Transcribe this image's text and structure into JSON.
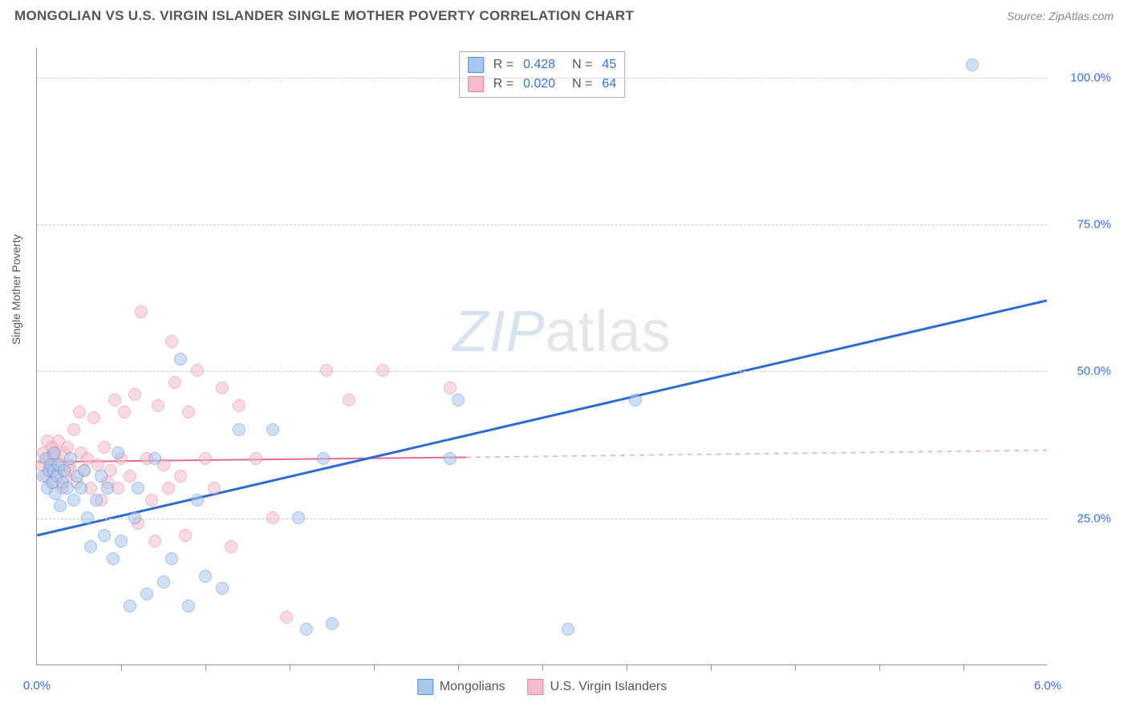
{
  "title": "MONGOLIAN VS U.S. VIRGIN ISLANDER SINGLE MOTHER POVERTY CORRELATION CHART",
  "source": "Source: ZipAtlas.com",
  "ylabel": "Single Mother Poverty",
  "watermark_bold": "ZIP",
  "watermark_thin": "atlas",
  "chart": {
    "type": "scatter",
    "xlim": [
      0.0,
      6.0
    ],
    "ylim": [
      0.0,
      105.0
    ],
    "xtick_labels": [
      "0.0%",
      "6.0%"
    ],
    "xtick_positions": [
      0.0,
      6.0
    ],
    "xtick_minor": [
      0.5,
      1.0,
      1.5,
      2.0,
      2.5,
      3.0,
      3.5,
      4.0,
      4.5,
      5.0,
      5.5
    ],
    "ytick_labels": [
      "25.0%",
      "50.0%",
      "75.0%",
      "100.0%"
    ],
    "ytick_positions": [
      25.0,
      50.0,
      75.0,
      100.0
    ],
    "grid_color": "#d4d4d4",
    "background_color": "#ffffff",
    "marker_radius": 8,
    "marker_opacity": 0.55,
    "series": [
      {
        "name": "Mongolians",
        "color_fill": "#a8c7ec",
        "color_stroke": "#5b8fd6",
        "R": "0.428",
        "N": "45",
        "trend": {
          "x1": 0.0,
          "y1": 22.0,
          "x2": 6.0,
          "y2": 62.0,
          "color": "#2e6bd0",
          "width": 3,
          "dash": "none"
        },
        "points": [
          [
            0.04,
            32
          ],
          [
            0.05,
            35
          ],
          [
            0.06,
            30
          ],
          [
            0.07,
            33
          ],
          [
            0.08,
            34
          ],
          [
            0.09,
            31
          ],
          [
            0.1,
            36
          ],
          [
            0.1,
            33
          ],
          [
            0.11,
            29
          ],
          [
            0.12,
            32
          ],
          [
            0.13,
            34
          ],
          [
            0.14,
            27
          ],
          [
            0.15,
            31
          ],
          [
            0.16,
            33
          ],
          [
            0.18,
            30
          ],
          [
            0.2,
            35
          ],
          [
            0.22,
            28
          ],
          [
            0.24,
            32
          ],
          [
            0.26,
            30
          ],
          [
            0.28,
            33
          ],
          [
            0.3,
            25
          ],
          [
            0.32,
            20
          ],
          [
            0.35,
            28
          ],
          [
            0.38,
            32
          ],
          [
            0.4,
            22
          ],
          [
            0.42,
            30
          ],
          [
            0.45,
            18
          ],
          [
            0.48,
            36
          ],
          [
            0.5,
            21
          ],
          [
            0.55,
            10
          ],
          [
            0.58,
            25
          ],
          [
            0.6,
            30
          ],
          [
            0.65,
            12
          ],
          [
            0.7,
            35
          ],
          [
            0.75,
            14
          ],
          [
            0.8,
            18
          ],
          [
            0.85,
            52
          ],
          [
            0.9,
            10
          ],
          [
            0.95,
            28
          ],
          [
            1.0,
            15
          ],
          [
            1.1,
            13
          ],
          [
            1.2,
            40
          ],
          [
            1.4,
            40
          ],
          [
            1.55,
            25
          ],
          [
            1.6,
            6
          ],
          [
            1.7,
            35
          ],
          [
            1.75,
            7
          ],
          [
            2.45,
            35
          ],
          [
            2.5,
            45
          ],
          [
            3.15,
            6
          ],
          [
            3.55,
            45
          ],
          [
            5.55,
            102
          ]
        ]
      },
      {
        "name": "U.S. Virgin Islanders",
        "color_fill": "#f4bccb",
        "color_stroke": "#e383a0",
        "R": "0.020",
        "N": "64",
        "trend_solid": {
          "x1": 0.0,
          "y1": 34.5,
          "x2": 2.55,
          "y2": 35.3,
          "color": "#e86a8f",
          "width": 2
        },
        "trend_dash": {
          "x1": 2.55,
          "y1": 35.3,
          "x2": 6.0,
          "y2": 36.5,
          "color": "#e8a9b9",
          "width": 1.5
        },
        "points": [
          [
            0.03,
            34
          ],
          [
            0.04,
            36
          ],
          [
            0.05,
            32
          ],
          [
            0.06,
            38
          ],
          [
            0.07,
            35
          ],
          [
            0.08,
            33
          ],
          [
            0.09,
            37
          ],
          [
            0.1,
            35
          ],
          [
            0.1,
            31
          ],
          [
            0.11,
            36
          ],
          [
            0.12,
            33
          ],
          [
            0.13,
            38
          ],
          [
            0.14,
            34
          ],
          [
            0.15,
            30
          ],
          [
            0.16,
            36
          ],
          [
            0.17,
            32
          ],
          [
            0.18,
            37
          ],
          [
            0.19,
            34
          ],
          [
            0.2,
            33
          ],
          [
            0.22,
            40
          ],
          [
            0.24,
            31
          ],
          [
            0.25,
            43
          ],
          [
            0.26,
            36
          ],
          [
            0.28,
            33
          ],
          [
            0.3,
            35
          ],
          [
            0.32,
            30
          ],
          [
            0.34,
            42
          ],
          [
            0.36,
            34
          ],
          [
            0.38,
            28
          ],
          [
            0.4,
            37
          ],
          [
            0.42,
            31
          ],
          [
            0.44,
            33
          ],
          [
            0.46,
            45
          ],
          [
            0.48,
            30
          ],
          [
            0.5,
            35
          ],
          [
            0.52,
            43
          ],
          [
            0.55,
            32
          ],
          [
            0.58,
            46
          ],
          [
            0.6,
            24
          ],
          [
            0.62,
            60
          ],
          [
            0.65,
            35
          ],
          [
            0.68,
            28
          ],
          [
            0.7,
            21
          ],
          [
            0.72,
            44
          ],
          [
            0.75,
            34
          ],
          [
            0.78,
            30
          ],
          [
            0.8,
            55
          ],
          [
            0.82,
            48
          ],
          [
            0.85,
            32
          ],
          [
            0.88,
            22
          ],
          [
            0.9,
            43
          ],
          [
            0.95,
            50
          ],
          [
            1.0,
            35
          ],
          [
            1.05,
            30
          ],
          [
            1.1,
            47
          ],
          [
            1.15,
            20
          ],
          [
            1.2,
            44
          ],
          [
            1.3,
            35
          ],
          [
            1.4,
            25
          ],
          [
            1.48,
            8
          ],
          [
            1.72,
            50
          ],
          [
            1.85,
            45
          ],
          [
            2.05,
            50
          ],
          [
            2.45,
            47
          ]
        ]
      }
    ],
    "legend_bottom": [
      {
        "label": "Mongolians",
        "fill": "#a8c7ec",
        "stroke": "#5b8fd6"
      },
      {
        "label": "U.S. Virgin Islanders",
        "fill": "#f4bccb",
        "stroke": "#e383a0"
      }
    ]
  }
}
